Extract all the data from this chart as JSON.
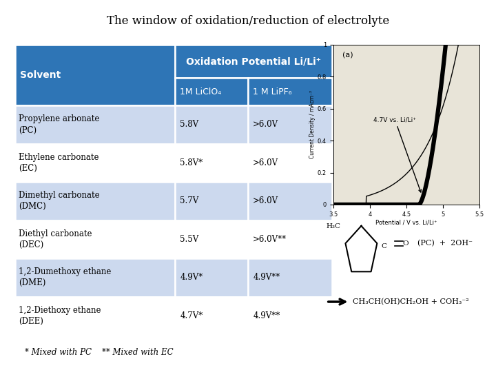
{
  "title": "The window of oxidation/reduction of electrolyte",
  "table": {
    "rows": [
      [
        "Propylene arbonate\n(PC)",
        "5.8V",
        ">6.0V"
      ],
      [
        "Ethylene carbonate\n(EC)",
        "5.8V*",
        ">6.0V"
      ],
      [
        "Dimethyl carbonate\n(DMC)",
        "5.7V",
        ">6.0V"
      ],
      [
        "Diethyl carbonate\n(DEC)",
        "5.5V",
        ">6.0V**"
      ],
      [
        "1,2-Dumethoxy ethane\n(DME)",
        "4.9V*",
        "4.9V**"
      ],
      [
        "1,2-Diethoxy ethane\n(DEE)",
        "4.7V*",
        "4.9V**"
      ]
    ]
  },
  "header_bg": "#2e75b6",
  "header_text": "#ffffff",
  "row_bg_even": "#ccd9ee",
  "row_bg_odd": "#ffffff",
  "footnote": "* Mixed with PC    ** Mixed with EC",
  "background_color": "#ffffff",
  "graph_bg": "#e8e4d8"
}
